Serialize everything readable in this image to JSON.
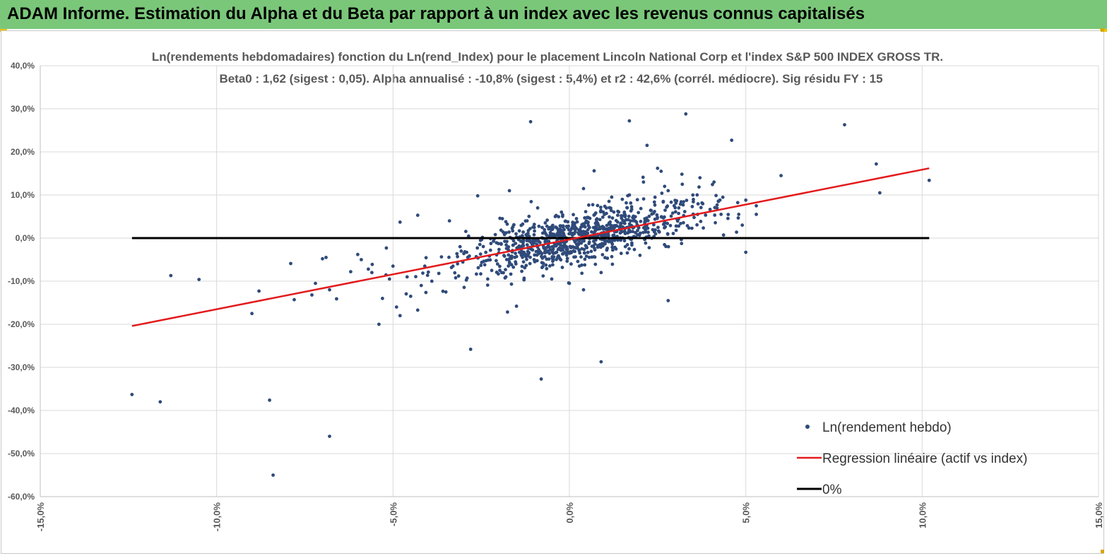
{
  "header": {
    "title": "ADAM Informe. Estimation du Alpha et du Beta par rapport à un index avec les revenus connus capitalisés"
  },
  "colors": {
    "header_bg": "#7ac77a",
    "points": "#2f4a7a",
    "regression": "#e31a1c",
    "zero_line": "#000000"
  },
  "chart_data": {
    "type": "scatter",
    "title_line1": "Ln(rendements hebdomadaires) fonction du Ln(rend_Index) pour le placement Lincoln National Corp et l'index S&P 500 INDEX GROSS TR.",
    "title_line2": "Beta0 : 1,62 (sigest : 0,05). Alpha annualisé : -10,8% (sigest : 5,4%) et r2 : 42,6% (corrél. médiocre). Sig résidu FY : 15",
    "xlim": [
      -15,
      15
    ],
    "ylim": [
      -60,
      40
    ],
    "x_ticks": [
      "-15,0%",
      "-10,0%",
      "-5,0%",
      "0,0%",
      "5,0%",
      "10,0%",
      "15,0%"
    ],
    "y_ticks": [
      "40,0%",
      "30,0%",
      "20,0%",
      "10,0%",
      "0,0%",
      "-10,0%",
      "-20,0%",
      "-30,0%",
      "-40,0%",
      "-50,0%",
      "-60,0%"
    ],
    "grid": true,
    "legend_position": "bottom-right",
    "legend": [
      "Ln(rendement hebdo)",
      "Regression linéaire (actif vs index)",
      "0%"
    ],
    "regression": {
      "x": [
        -12.4,
        10.2
      ],
      "y": [
        -20.4,
        16.2
      ]
    },
    "zero_line": {
      "x": [
        -12.4,
        10.2
      ],
      "y": [
        0,
        0
      ]
    },
    "cloud": {
      "n": 900,
      "beta": 1.62,
      "intercept": -0.2,
      "sigma": 3.0,
      "x_sd": 1.7,
      "seed": 7
    },
    "points": [
      [
        -12.4,
        -36.3
      ],
      [
        -11.6,
        -38.0
      ],
      [
        -11.3,
        -8.7
      ],
      [
        -10.5,
        -9.6
      ],
      [
        -9.0,
        -17.5
      ],
      [
        -8.8,
        -12.3
      ],
      [
        -8.5,
        -37.6
      ],
      [
        -8.4,
        -55.0
      ],
      [
        -7.9,
        -5.9
      ],
      [
        -7.8,
        -14.3
      ],
      [
        -7.3,
        -13.2
      ],
      [
        -7.2,
        -10.5
      ],
      [
        -7.0,
        -4.8
      ],
      [
        -6.9,
        -4.5
      ],
      [
        -6.8,
        -12.0
      ],
      [
        -6.8,
        -46.0
      ],
      [
        -6.6,
        -14.1
      ],
      [
        -6.2,
        -7.8
      ],
      [
        -6.0,
        -3.8
      ],
      [
        -5.9,
        -5.0
      ],
      [
        -5.7,
        -7.2
      ],
      [
        -5.6,
        -8.0
      ],
      [
        -5.4,
        -20.0
      ],
      [
        -5.3,
        -14.0
      ],
      [
        -5.1,
        -9.5
      ],
      [
        -5.0,
        -6.5
      ],
      [
        -4.9,
        -16.0
      ],
      [
        -4.8,
        3.7
      ],
      [
        -4.8,
        -18.0
      ],
      [
        -4.6,
        -9.0
      ],
      [
        -4.5,
        -13.5
      ],
      [
        -4.3,
        -16.7
      ],
      [
        -4.3,
        5.3
      ],
      [
        -4.2,
        -11.0
      ],
      [
        -4.1,
        -6.5
      ],
      [
        -3.9,
        -10.0
      ],
      [
        -3.7,
        -8.2
      ],
      [
        -3.5,
        -12.5
      ],
      [
        -3.4,
        4.0
      ],
      [
        -3.3,
        -6.5
      ],
      [
        -3.1,
        -2.0
      ],
      [
        -2.9,
        -9.3
      ],
      [
        -2.8,
        -25.8
      ],
      [
        -2.6,
        9.8
      ],
      [
        -2.4,
        -6.2
      ],
      [
        -2.2,
        -7.5
      ],
      [
        -2.1,
        0.8
      ],
      [
        -1.9,
        4.5
      ],
      [
        -1.8,
        -9.0
      ],
      [
        -1.7,
        11.0
      ],
      [
        -1.5,
        -15.8
      ],
      [
        -1.3,
        -5.5
      ],
      [
        -1.2,
        4.0
      ],
      [
        -1.1,
        27.0
      ],
      [
        -1.0,
        -5.0
      ],
      [
        -0.9,
        7.0
      ],
      [
        -0.8,
        -32.7
      ],
      [
        -0.6,
        -3.0
      ],
      [
        -0.5,
        -9.5
      ],
      [
        -0.4,
        5.0
      ],
      [
        -0.2,
        -6.8
      ],
      [
        0.0,
        -10.5
      ],
      [
        0.2,
        4.5
      ],
      [
        0.4,
        11.5
      ],
      [
        0.4,
        -12.0
      ],
      [
        0.7,
        15.6
      ],
      [
        0.9,
        -8.0
      ],
      [
        0.9,
        -28.7
      ],
      [
        1.2,
        9.5
      ],
      [
        1.5,
        9.0
      ],
      [
        1.7,
        10.0
      ],
      [
        1.7,
        27.2
      ],
      [
        2.0,
        -4.0
      ],
      [
        2.1,
        13.0
      ],
      [
        2.2,
        21.5
      ],
      [
        2.5,
        16.2
      ],
      [
        2.6,
        15.5
      ],
      [
        2.7,
        12.0
      ],
      [
        2.8,
        -14.5
      ],
      [
        2.8,
        11.0
      ],
      [
        3.1,
        7.0
      ],
      [
        3.2,
        12.5
      ],
      [
        3.3,
        28.8
      ],
      [
        3.5,
        10.0
      ],
      [
        3.7,
        14.0
      ],
      [
        4.1,
        13.0
      ],
      [
        4.3,
        5.5
      ],
      [
        4.6,
        22.7
      ],
      [
        4.8,
        5.5
      ],
      [
        4.9,
        3.0
      ],
      [
        5.0,
        -3.3
      ],
      [
        5.0,
        8.8
      ],
      [
        5.3,
        7.5
      ],
      [
        5.3,
        5.5
      ],
      [
        6.0,
        14.5
      ],
      [
        7.8,
        26.3
      ],
      [
        8.7,
        17.2
      ],
      [
        8.8,
        10.5
      ],
      [
        10.2,
        13.4
      ]
    ]
  }
}
